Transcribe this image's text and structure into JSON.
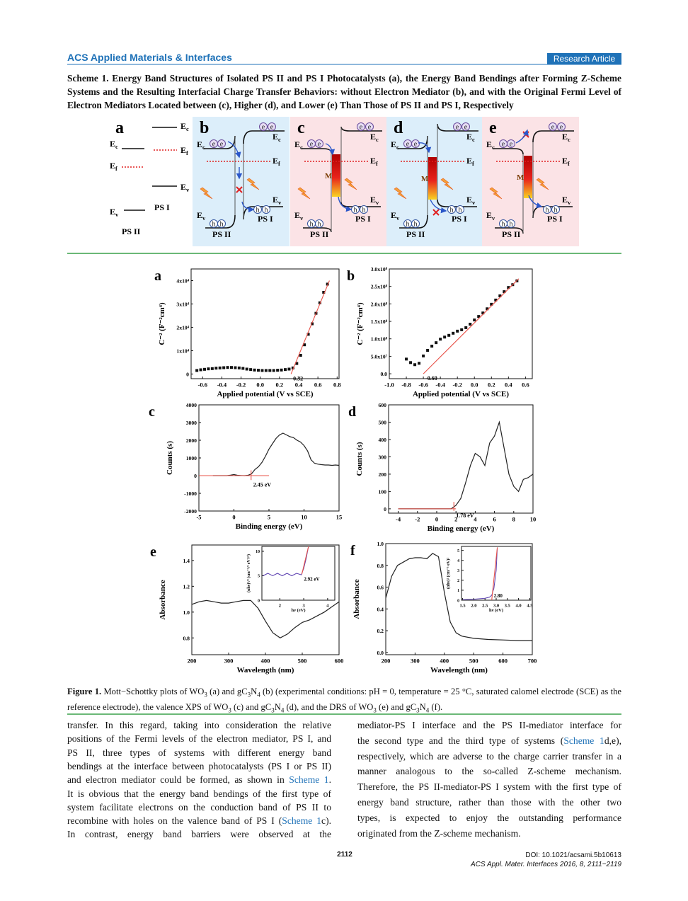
{
  "header": {
    "journal": "ACS Applied Materials & Interfaces",
    "article_type": "Research Article"
  },
  "scheme": {
    "label": "Scheme 1.",
    "caption": "Energy Band Structures of Isolated PS II and PS I Photocatalysts (a), the Energy Band Bendings after Forming Z-Scheme Systems and the Resulting Interfacial Charge Transfer Behaviors: without Electron Mediator (b), and with the Original Fermi Level of Electron Mediators Located between (c), Higher (d), and Lower (e) Than Those of PS II and PS I, Respectively",
    "panels": [
      "a",
      "b",
      "c",
      "d",
      "e"
    ],
    "levels": {
      "conduction": "Ec",
      "fermi": "Ef",
      "valence": "Ev"
    },
    "ps1": "PS I",
    "ps2": "PS II",
    "mediator": "M",
    "electron": "e",
    "hole": "h"
  },
  "figure": {
    "label": "Figure 1.",
    "caption": [
      "Mott−Schottky plots of WO",
      {
        "sub": "3"
      },
      " (a) and gC",
      {
        "sub": "3"
      },
      "N",
      {
        "sub": "4"
      },
      " (b) (experimental conditions: pH = 0, temperature = 25 °C, saturated calomel electrode (SCE) as the reference electrode), the valence XPS of WO",
      {
        "sub": "3"
      },
      " (c) and gC",
      {
        "sub": "3"
      },
      "N",
      {
        "sub": "4"
      },
      " (d), and the DRS of WO",
      {
        "sub": "3"
      },
      " (e) and gC",
      {
        "sub": "3"
      },
      "N",
      {
        "sub": "4"
      },
      " (f)."
    ],
    "panels": [
      {
        "type": "scatter",
        "label": "a",
        "xlabel": "Applied potential (V vs SCE)",
        "ylabel": "C⁻² (F⁻²cm⁴)",
        "xlim": [
          -0.72,
          0.82
        ],
        "ylim": [
          -2000,
          45000
        ],
        "xticks": [
          -0.6,
          -0.4,
          -0.2,
          {
            "value": 0,
            "label": "0.0"
          },
          0.2,
          0.4,
          0.6,
          0.8
        ],
        "yticks": [
          0,
          {
            "value": 10000,
            "label": "1x10⁴"
          },
          {
            "value": 20000,
            "label": "2x10⁴"
          },
          {
            "value": 30000,
            "label": "3x10⁴"
          },
          {
            "value": 40000,
            "label": "4x10⁴"
          }
        ],
        "x": [
          -0.66,
          -0.62,
          -0.58,
          -0.54,
          -0.5,
          -0.46,
          -0.42,
          -0.38,
          -0.34,
          -0.3,
          -0.26,
          -0.22,
          -0.18,
          -0.14,
          -0.1,
          -0.06,
          -0.02,
          0.02,
          0.06,
          0.1,
          0.14,
          0.18,
          0.22,
          0.26,
          0.3,
          0.34,
          0.38,
          0.42,
          0.46,
          0.5,
          0.54,
          0.58,
          0.62,
          0.66,
          0.7
        ],
        "values": [
          1500,
          1800,
          2000,
          2200,
          2300,
          2500,
          2600,
          2700,
          2800,
          2800,
          2700,
          2600,
          2400,
          2100,
          1900,
          1700,
          1600,
          1500,
          1500,
          1500,
          1500,
          1600,
          1700,
          1900,
          2100,
          2600,
          4500,
          8000,
          12500,
          17000,
          21500,
          26000,
          30500,
          35000,
          38500
        ],
        "color": "#111111",
        "fit": {
          "color": "#e8534a",
          "lines": [
            {
              "x": [
                0.32,
                0.72
              ],
              "values": [
                0,
                40000
              ]
            }
          ]
        },
        "annotation": "0.32"
      },
      {
        "type": "scatter",
        "label": "b",
        "xlabel": "Applied potential (V vs SCE)",
        "ylabel": "C⁻² (F⁻²cm⁴)",
        "xlim": [
          -1.0,
          0.68
        ],
        "ylim": [
          -14000000,
          300000000
        ],
        "xticks": [
          {
            "value": -1,
            "label": "-1.0"
          },
          -0.8,
          -0.6,
          -0.4,
          -0.2,
          {
            "value": 0,
            "label": "0.0"
          },
          0.2,
          0.4,
          0.6
        ],
        "yticks": [
          {
            "value": 0,
            "label": "0.0"
          },
          {
            "value": 50000000,
            "label": "5.0x10⁷"
          },
          {
            "value": 100000000,
            "label": "1.0x10⁸"
          },
          {
            "value": 150000000,
            "label": "1.5x10⁸"
          },
          {
            "value": 200000000,
            "label": "2.0x10⁸"
          },
          {
            "value": 250000000,
            "label": "2.5x10⁸"
          },
          {
            "value": 300000000,
            "label": "3.0x10⁸"
          }
        ],
        "x": [
          -0.8,
          -0.75,
          -0.7,
          -0.65,
          -0.6,
          -0.55,
          -0.5,
          -0.45,
          -0.4,
          -0.35,
          -0.3,
          -0.25,
          -0.2,
          -0.15,
          -0.1,
          -0.05,
          0,
          0.05,
          0.1,
          0.15,
          0.2,
          0.25,
          0.3,
          0.35,
          0.4,
          0.45,
          0.5
        ],
        "values": [
          42000000,
          32000000,
          26000000,
          30000000,
          51000000,
          67000000,
          79000000,
          89000000,
          99000000,
          105000000,
          110000000,
          116000000,
          122000000,
          126000000,
          132000000,
          142000000,
          154000000,
          164000000,
          174000000,
          186000000,
          199000000,
          211000000,
          223000000,
          235000000,
          247000000,
          255000000,
          266000000
        ],
        "color": "#111111",
        "fit": {
          "color": "#e8534a",
          "lines": [
            {
              "x": [
                -0.6,
                0.52
              ],
              "values": [
                0,
                272000000
              ]
            }
          ]
        },
        "annotation": "-0.60"
      },
      {
        "type": "line",
        "label": "c",
        "xlabel": "Binding energy (eV)",
        "ylabel": "Counts (s)",
        "xlim": [
          -5,
          15
        ],
        "ylim": [
          -2000,
          4000
        ],
        "xticks": [
          -5,
          0,
          5,
          10,
          15
        ],
        "yticks": [
          -2000,
          -1000,
          0,
          1000,
          2000,
          3000,
          4000
        ],
        "x": [
          -3,
          -2.5,
          -2,
          -1.5,
          -1,
          -0.5,
          0,
          0.5,
          1,
          1.5,
          2,
          2.5,
          3,
          3.5,
          4,
          4.5,
          5,
          5.5,
          6,
          6.5,
          7,
          7.5,
          8,
          8.5,
          9,
          9.5,
          10,
          10.5,
          11,
          11.5,
          12,
          12.5,
          13,
          13.5,
          14,
          14.5,
          15
        ],
        "values": [
          0,
          0,
          0,
          0,
          0,
          30,
          60,
          20,
          10,
          0,
          20,
          100,
          350,
          500,
          750,
          1100,
          1500,
          1800,
          2100,
          2300,
          2400,
          2300,
          2200,
          2150,
          2000,
          1900,
          1700,
          1400,
          900,
          700,
          650,
          620,
          600,
          600,
          580,
          600,
          580
        ],
        "color": "#222222",
        "fit": {
          "color": "#e8534a",
          "lines": [
            {
              "x": [
                -5,
                5
              ],
              "values": [
                0,
                0
              ]
            },
            {
              "x": [
                2.45,
                2.45
              ],
              "values": [
                -250,
                300
              ]
            }
          ]
        },
        "annotation": "2.45 eV"
      },
      {
        "type": "line",
        "label": "d",
        "xlabel": "Binding energy (eV)",
        "ylabel": "Counts (s)",
        "xlim": [
          -5,
          10
        ],
        "ylim": [
          -25,
          600
        ],
        "xticks": [
          -4,
          -2,
          0,
          2,
          4,
          6,
          8,
          10
        ],
        "yticks": [
          0,
          100,
          200,
          300,
          400,
          500,
          600
        ],
        "x": [
          -4,
          -3.5,
          -3,
          -2.5,
          -2,
          -1.5,
          -1,
          -0.5,
          0,
          0.5,
          1,
          1.5,
          2,
          2.5,
          3,
          3.5,
          4,
          4.5,
          5,
          5.5,
          6,
          6.5,
          7,
          7.5,
          8,
          8.5,
          9,
          9.5,
          10
        ],
        "values": [
          0,
          0,
          0,
          0,
          0,
          0,
          0,
          0,
          0,
          0,
          0,
          0,
          20,
          60,
          150,
          250,
          320,
          300,
          250,
          380,
          420,
          500,
          350,
          200,
          130,
          100,
          170,
          180,
          200
        ],
        "color": "#222222",
        "fit": {
          "color": "#e8534a",
          "lines": [
            {
              "x": [
                -4,
                2
              ],
              "values": [
                0,
                0
              ]
            },
            {
              "x": [
                1.78,
                1.78
              ],
              "values": [
                -12,
                40
              ]
            }
          ]
        },
        "annotation": "1.78 eV"
      },
      {
        "type": "line",
        "label": "e",
        "xlabel": "Wavelength (nm)",
        "ylabel": "Absorbance",
        "xlim": [
          200,
          600
        ],
        "ylim": [
          0.67,
          1.52
        ],
        "xticks": [
          200,
          300,
          400,
          500,
          600
        ],
        "yticks": [
          0.8,
          {
            "value": 1,
            "label": "1.0"
          },
          1.2,
          1.4
        ],
        "x": [
          200,
          220,
          240,
          260,
          280,
          300,
          320,
          340,
          360,
          380,
          400,
          420,
          440,
          460,
          480,
          500,
          520,
          540,
          560,
          580,
          600
        ],
        "values": [
          1.06,
          1.08,
          1.09,
          1.08,
          1.07,
          1.07,
          1.08,
          1.09,
          1.09,
          1.03,
          0.93,
          0.84,
          0.8,
          0.83,
          0.88,
          0.92,
          0.94,
          0.97,
          1.0,
          1.04,
          1.08
        ],
        "color": "#222222",
        "inset": {
          "type": "line",
          "xlabel": "hν (eV)",
          "ylabel": "(αhν)¹/² (cm⁻¹/² eV¹/²)",
          "xlim": [
            1.25,
            4.3
          ],
          "ylim": [
            0,
            11
          ],
          "xticks": [
            2,
            3,
            4
          ],
          "yticks": [
            0,
            5,
            10
          ],
          "x": [
            1.3,
            1.5,
            1.7,
            1.9,
            2.1,
            2.3,
            2.5,
            2.7,
            2.9,
            3.0,
            3.1,
            3.2
          ],
          "values": [
            5,
            5.5,
            5,
            5.5,
            5,
            5.5,
            5,
            5.5,
            5.2,
            6.5,
            8.5,
            11
          ],
          "color": "#5b3fb0",
          "fit": {
            "color": "#e8534a",
            "lines": [
              {
                "x": [
                  2.92,
                  3.2
                ],
                "values": [
                  5.3,
                  11
                ]
              }
            ]
          },
          "annotation": "2.92 eV"
        }
      },
      {
        "type": "line",
        "label": "f",
        "xlabel": "Wavelength (nm)",
        "ylabel": "Absorbance",
        "xlim": [
          200,
          700
        ],
        "ylim": [
          -0.02,
          1.0
        ],
        "xticks": [
          200,
          300,
          400,
          500,
          600,
          700
        ],
        "yticks": [
          {
            "value": 0,
            "label": "0.0"
          },
          0.2,
          0.4,
          0.6,
          0.8,
          {
            "value": 1,
            "label": "1.0"
          }
        ],
        "x": [
          200,
          220,
          240,
          260,
          280,
          300,
          320,
          340,
          360,
          380,
          400,
          420,
          440,
          460,
          500,
          550,
          600,
          650,
          700
        ],
        "values": [
          0.5,
          0.7,
          0.8,
          0.83,
          0.86,
          0.87,
          0.87,
          0.86,
          0.91,
          0.88,
          0.55,
          0.28,
          0.18,
          0.15,
          0.13,
          0.12,
          0.115,
          0.11,
          0.11
        ],
        "color": "#222222",
        "inset": {
          "type": "line",
          "xlabel": "hν (eV)",
          "ylabel": "(αhν)² (cm⁻¹·eV)²",
          "xlim": [
            1.45,
            4.55
          ],
          "ylim": [
            0,
            5.4
          ],
          "xticks": [
            1.5,
            {
              "value": 2,
              "label": "2.0"
            },
            2.5,
            {
              "value": 3,
              "label": "3.0"
            },
            3.5,
            {
              "value": 4,
              "label": "4.0"
            },
            4.5
          ],
          "yticks": [
            0,
            1,
            2,
            3,
            4,
            5
          ],
          "x": [
            1.5,
            2.0,
            2.5,
            2.7,
            2.8,
            2.9,
            3.0,
            3.05
          ],
          "values": [
            0.05,
            0.1,
            0.2,
            0.3,
            0.5,
            1.2,
            3,
            5.3
          ],
          "color": "#5b3fb0",
          "fit": {
            "color": "#e8534a",
            "lines": [
              {
                "x": [
                  2.8,
                  3.05
                ],
                "values": [
                  0,
                  5.3
                ]
              }
            ]
          },
          "annotation": "2.80"
        }
      }
    ]
  },
  "body": {
    "left": [
      "transfer. In this regard, taking into consideration the relative",
      "positions of the Fermi levels of the electron mediator, PS I, and",
      "PS II, three types of systems with different energy band",
      "bendings at the interface between photocatalysts (PS I or PS II)",
      [
        "and electron mediator could be formed, as shown in ",
        {
          "link": "Scheme 1"
        },
        "."
      ],
      "It is obvious that the energy band bendings of the first type of",
      "system facilitate electrons on the conduction band of PS II to",
      [
        "recombine with holes on the valence band of PS I (",
        {
          "link": "Scheme 1"
        },
        "c)."
      ],
      "In contrast, energy band barriers were observed at the"
    ],
    "right": [
      "mediator-PS I interface and the PS II-mediator interface for",
      [
        "the second type and the third type of systems (",
        {
          "link": "Scheme 1"
        },
        "d,e),"
      ],
      "respectively, which are adverse to the charge carrier transfer in a",
      "manner analogous to the so-called Z-scheme mechanism.",
      "Therefore, the PS II-mediator-PS I system with the first type of",
      "energy band structure, rather than those with the other two",
      "types, is expected to enjoy the outstanding performance",
      "originated from the Z-scheme mechanism."
    ]
  },
  "footer": {
    "page": "2112",
    "doi": "DOI: 10.1021/acsami.5b10613",
    "citation": "ACS Appl. Mater. Interfaces 2016, 8, 2111−2119"
  }
}
